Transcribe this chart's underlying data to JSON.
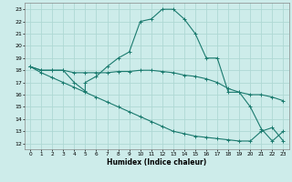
{
  "title": "",
  "xlabel": "Humidex (Indice chaleur)",
  "xlim": [
    -0.5,
    23.5
  ],
  "ylim": [
    11.5,
    23.5
  ],
  "xticks": [
    0,
    1,
    2,
    3,
    4,
    5,
    6,
    7,
    8,
    9,
    10,
    11,
    12,
    13,
    14,
    15,
    16,
    17,
    18,
    19,
    20,
    21,
    22,
    23
  ],
  "yticks": [
    12,
    13,
    14,
    15,
    16,
    17,
    18,
    19,
    20,
    21,
    22,
    23
  ],
  "bg_color": "#cdecea",
  "grid_color": "#aed8d4",
  "line_color": "#1a7a6e",
  "series1_x": [
    0,
    1,
    2,
    3,
    4,
    5,
    5,
    6,
    7,
    8,
    9,
    10,
    11,
    12,
    13,
    14,
    15,
    16,
    17,
    18,
    19,
    20,
    21,
    22,
    23
  ],
  "series1_y": [
    18.3,
    18.0,
    18.0,
    18.0,
    17.0,
    16.3,
    17.0,
    17.5,
    18.3,
    19.0,
    19.5,
    22.0,
    22.2,
    23.0,
    23.0,
    22.2,
    21.0,
    19.0,
    19.0,
    16.2,
    16.2,
    15.0,
    13.2,
    12.2,
    13.0
  ],
  "series2_x": [
    0,
    1,
    2,
    3,
    4,
    5,
    6,
    7,
    8,
    9,
    10,
    11,
    12,
    13,
    14,
    15,
    16,
    17,
    18,
    19,
    20,
    21,
    22,
    23
  ],
  "series2_y": [
    18.3,
    18.0,
    18.0,
    18.0,
    17.8,
    17.8,
    17.8,
    17.8,
    17.9,
    17.9,
    18.0,
    18.0,
    17.9,
    17.8,
    17.6,
    17.5,
    17.3,
    17.0,
    16.5,
    16.2,
    16.0,
    16.0,
    15.8,
    15.5
  ],
  "series3_x": [
    0,
    1,
    2,
    3,
    4,
    5,
    6,
    7,
    8,
    9,
    10,
    11,
    12,
    13,
    14,
    15,
    16,
    17,
    18,
    19,
    20,
    21,
    22,
    23
  ],
  "series3_y": [
    18.3,
    17.8,
    17.4,
    17.0,
    16.6,
    16.2,
    15.8,
    15.4,
    15.0,
    14.6,
    14.2,
    13.8,
    13.4,
    13.0,
    12.8,
    12.6,
    12.5,
    12.4,
    12.3,
    12.2,
    12.2,
    13.0,
    13.3,
    12.2
  ]
}
